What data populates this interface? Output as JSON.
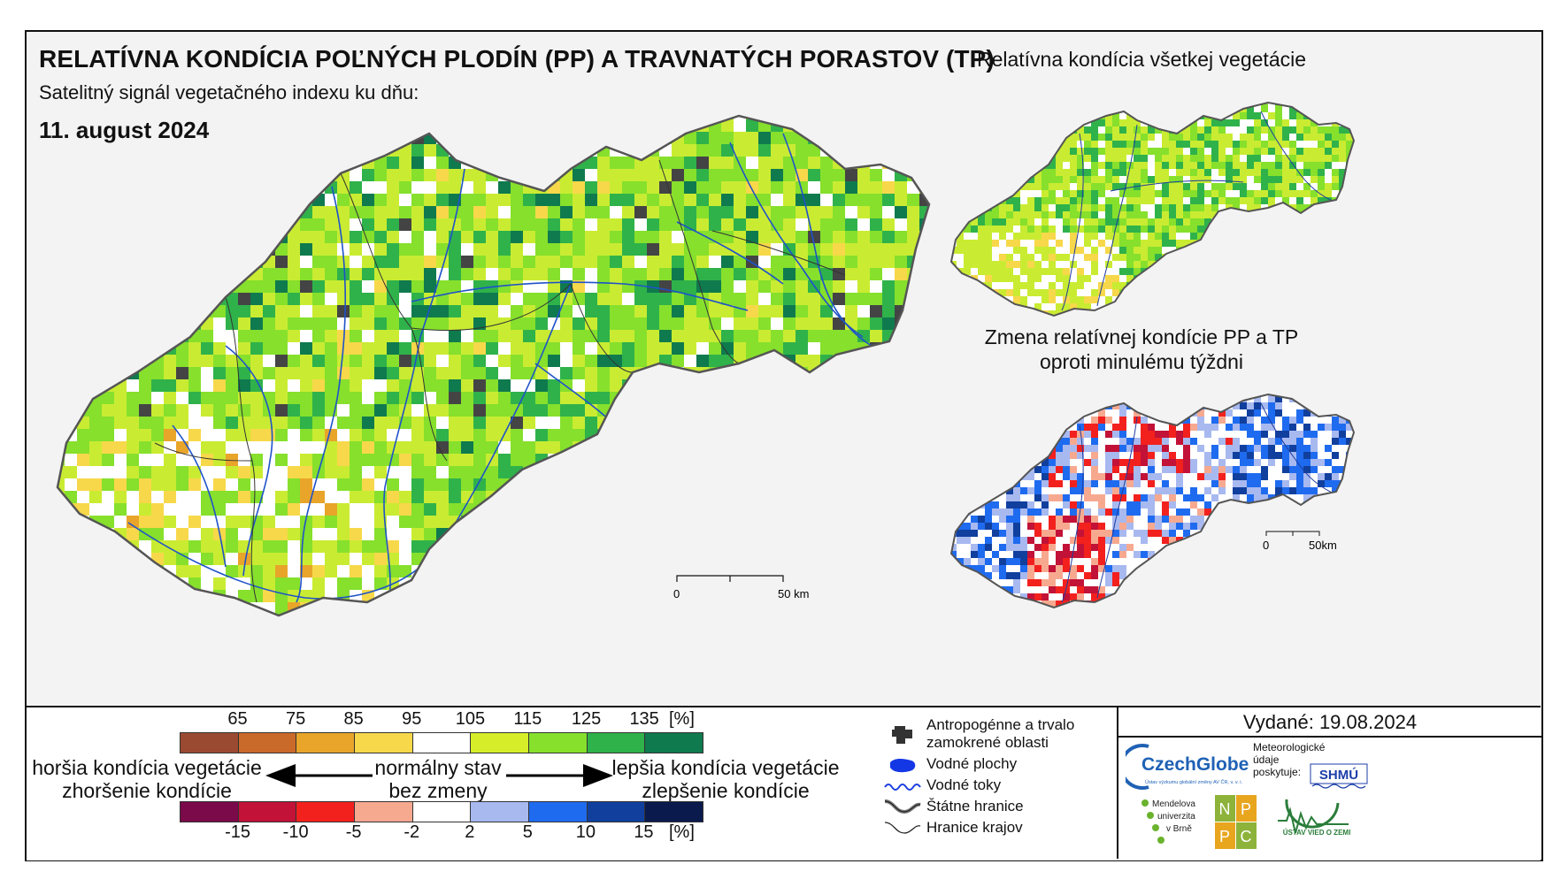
{
  "main": {
    "title": "RELATÍVNA KONDÍCIA POĽNÝCH PLODÍN (PP) A TRAVNATÝCH PORASTOV (TP)",
    "subtitle": "Satelitný signál vegetačného indexu ku dňu:",
    "date": "11. august 2024",
    "scale_0": "0",
    "scale_50": "50 km"
  },
  "inset_top": {
    "title": "Relatívna kondícia všetkej vegetácie"
  },
  "inset_bottom": {
    "title_line1": "Zmena relatívnej kondície PP a TP",
    "title_line2": "oproti minulému týždni",
    "scale_0": "0",
    "scale_50": "50km"
  },
  "legend": {
    "condition_ticks": [
      "65",
      "75",
      "85",
      "95",
      "105",
      "115",
      "125",
      "135"
    ],
    "condition_unit": "[%]",
    "condition_colors": [
      "#9b4a32",
      "#c9692a",
      "#e8a52a",
      "#f7d84a",
      "#ffffff",
      "#d6ee2a",
      "#86e02c",
      "#2fb24a",
      "#0f7a4e"
    ],
    "change_ticks": [
      "-15",
      "-10",
      "-5",
      "-2",
      "2",
      "5",
      "10",
      "15"
    ],
    "change_unit": "[%]",
    "change_colors": [
      "#7a0a4a",
      "#c21237",
      "#f2211e",
      "#f7a990",
      "#ffffff",
      "#a8b9f0",
      "#1f6bef",
      "#103f9e",
      "#0a1a4d"
    ],
    "worse_line1": "horšia kondícia vegetácie",
    "worse_line2": "zhoršenie kondície",
    "normal_line1": "normálny stav",
    "normal_line2": "bez zmeny",
    "better_line1": "lepšia kondícia vegetácie",
    "better_line2": "zlepšenie kondície"
  },
  "symbols": {
    "anthropogenic_line1": "Antropogénne a trvalo",
    "anthropogenic_line2": "zamokrené oblasti",
    "water_areas": "Vodné plochy",
    "rivers": "Vodné toky",
    "state_border": "Štátne hranice",
    "region_border": "Hranice krajov"
  },
  "issued": {
    "label": "Vydané: 19.08.2024"
  },
  "logos": {
    "czechglobe": "CzechGlobe",
    "czechglobe_sub": "Ústav výzkumu globální změny AV ČR, v. v. i.",
    "meteo_line1": "Meteorologické",
    "meteo_line2": "údaje",
    "meteo_line3": "poskytuje:",
    "shmu": "SHMÚ",
    "mendel_line1": "Mendelova",
    "mendel_line2": "univerzita",
    "mendel_line3": "v Brně",
    "nppc": [
      "N",
      "P",
      "P",
      "C"
    ],
    "uvz": "ÚSTAV VIED O ZEMI"
  }
}
